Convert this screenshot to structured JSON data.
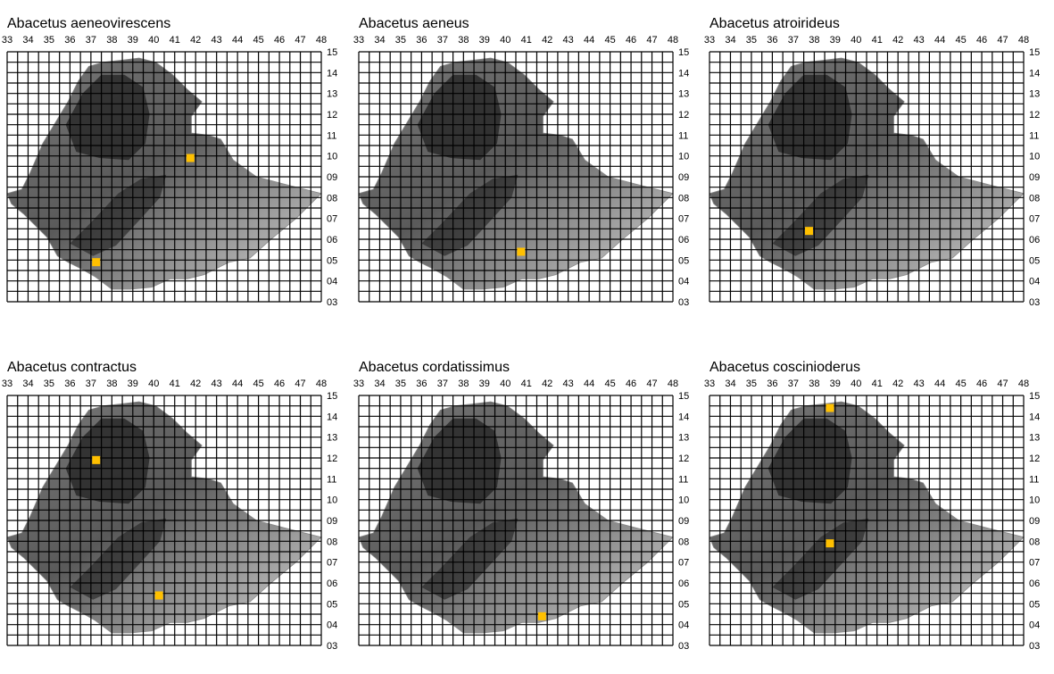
{
  "x_ticks": [
    "33",
    "34",
    "35",
    "36",
    "37",
    "38",
    "39",
    "40",
    "41",
    "42",
    "43",
    "44",
    "45",
    "46",
    "47",
    "48"
  ],
  "y_ticks": [
    "15",
    "14",
    "13",
    "12",
    "11",
    "10",
    "09",
    "08",
    "07",
    "06",
    "05",
    "04",
    "03"
  ],
  "colors": {
    "record": "#ffc000",
    "grid": "#000000",
    "terrain_light": "#d4d4d4",
    "terrain_dark": "#262626"
  },
  "maps": [
    {
      "title": "Abacetus aeneovirescens",
      "records": [
        {
          "lon": 41.75,
          "lat": 9.9
        },
        {
          "lon": 37.25,
          "lat": 4.9
        }
      ]
    },
    {
      "title": "Abacetus aeneus",
      "records": [
        {
          "lon": 40.75,
          "lat": 5.4
        }
      ]
    },
    {
      "title": "Abacetus atroirideus",
      "records": [
        {
          "lon": 37.75,
          "lat": 6.4
        }
      ]
    },
    {
      "title": "Abacetus contractus",
      "records": [
        {
          "lon": 37.25,
          "lat": 11.9
        },
        {
          "lon": 40.25,
          "lat": 5.4
        }
      ]
    },
    {
      "title": "Abacetus cordatissimus",
      "records": [
        {
          "lon": 41.75,
          "lat": 4.4
        }
      ]
    },
    {
      "title": "Abacetus coscinioderus",
      "records": [
        {
          "lon": 38.75,
          "lat": 14.4
        },
        {
          "lon": 38.75,
          "lat": 7.9
        }
      ]
    }
  ]
}
